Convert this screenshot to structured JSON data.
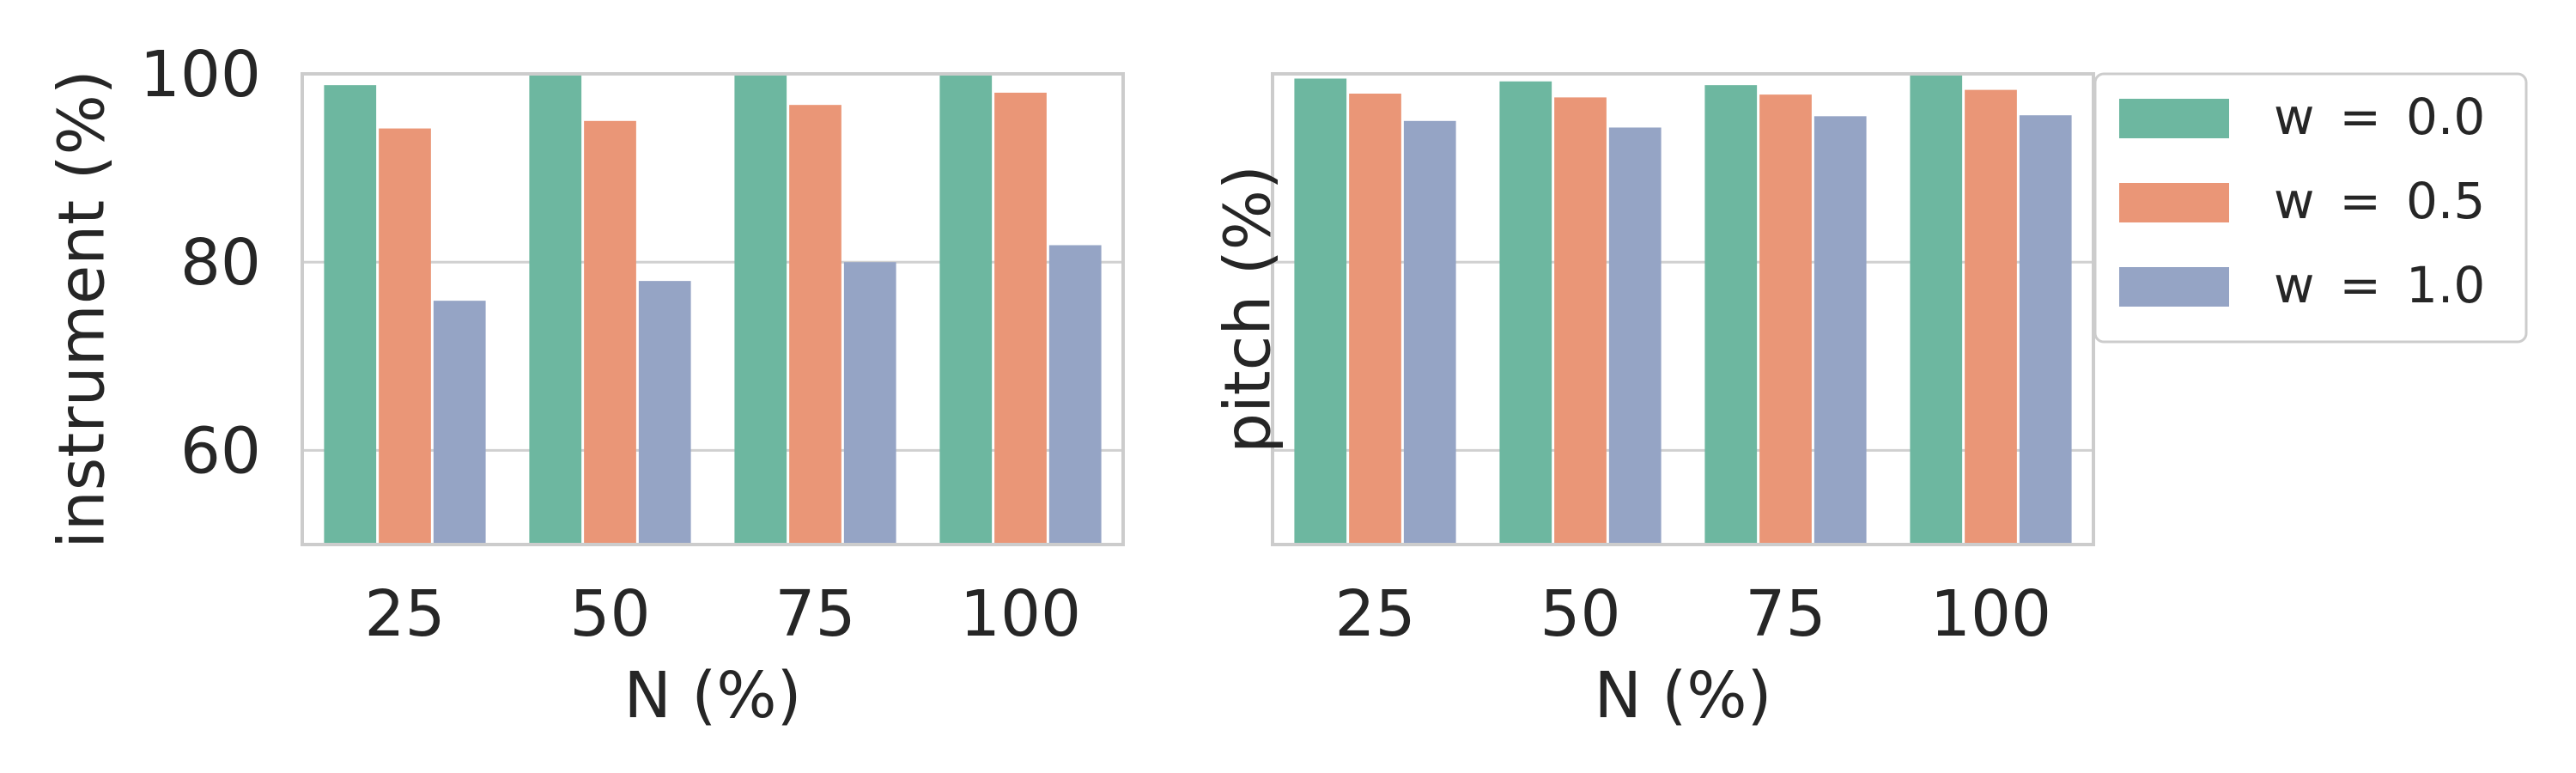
{
  "chart_data": [
    {
      "type": "bar",
      "categories": [
        "25",
        "50",
        "75",
        "100"
      ],
      "xlabel": "N (%)",
      "ylabel": "instrument (%)",
      "ylim": [
        50,
        100
      ],
      "yticks": [
        60,
        80,
        100
      ],
      "grid": "horizontal",
      "series": [
        {
          "name": "w = 0.0",
          "color": "#6db7a0",
          "values": [
            98.8,
            100.0,
            100.0,
            100.0
          ]
        },
        {
          "name": "w = 0.5",
          "color": "#ea9677",
          "values": [
            94.2,
            95.0,
            96.7,
            98.0
          ]
        },
        {
          "name": "w = 1.0",
          "color": "#95a4c5",
          "values": [
            75.9,
            78.0,
            80.0,
            81.8
          ]
        }
      ]
    },
    {
      "type": "bar",
      "categories": [
        "25",
        "50",
        "75",
        "100"
      ],
      "xlabel": "N (%)",
      "ylabel": "pitch (%)",
      "ylim": [
        50,
        100
      ],
      "yticks": [
        60,
        80,
        100
      ],
      "grid": "horizontal",
      "series": [
        {
          "name": "w = 0.0",
          "color": "#6db7a0",
          "values": [
            99.5,
            99.2,
            98.8,
            100.0
          ]
        },
        {
          "name": "w = 0.5",
          "color": "#ea9677",
          "values": [
            97.9,
            97.5,
            97.8,
            98.3
          ]
        },
        {
          "name": "w = 1.0",
          "color": "#95a4c5",
          "values": [
            95.0,
            94.3,
            95.5,
            95.6
          ]
        }
      ]
    }
  ],
  "legend": {
    "placement": "right of second chart, top",
    "entries": [
      "w = 0.0",
      "w = 0.5",
      "w = 1.0"
    ]
  }
}
